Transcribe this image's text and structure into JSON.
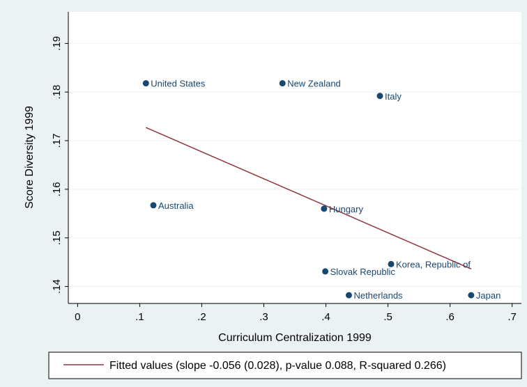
{
  "chart_data": {
    "type": "scatter",
    "xlabel": "Curriculum Centralization 1999",
    "ylabel": "Score Diversity 1999",
    "xlim": [
      -0.015,
      0.715
    ],
    "ylim": [
      0.1365,
      0.1965
    ],
    "x_ticks": [
      "0",
      ".1",
      ".2",
      ".3",
      ".4",
      ".5",
      ".6",
      ".7"
    ],
    "x_tick_values": [
      0,
      0.1,
      0.2,
      0.3,
      0.4,
      0.5,
      0.6,
      0.7
    ],
    "y_ticks": [
      ".14",
      ".15",
      ".16",
      ".17",
      ".18",
      ".19"
    ],
    "y_tick_values": [
      0.14,
      0.15,
      0.16,
      0.17,
      0.18,
      0.19
    ],
    "grid": "horizontal",
    "legend_position": "bottom",
    "points": [
      {
        "label": "United States",
        "x": 0.11,
        "y": 0.1818
      },
      {
        "label": "New Zealand",
        "x": 0.33,
        "y": 0.1818
      },
      {
        "label": "Italy",
        "x": 0.487,
        "y": 0.1792
      },
      {
        "label": "Australia",
        "x": 0.122,
        "y": 0.1567
      },
      {
        "label": "Hungary",
        "x": 0.397,
        "y": 0.156
      },
      {
        "label": "Korea, Republic of",
        "x": 0.505,
        "y": 0.1446
      },
      {
        "label": "Slovak Republic",
        "x": 0.399,
        "y": 0.1431
      },
      {
        "label": "Netherlands",
        "x": 0.437,
        "y": 0.1382
      },
      {
        "label": "Japan",
        "x": 0.634,
        "y": 0.1382
      }
    ],
    "fit_line": {
      "name": "Fitted values (slope -0.056 (0.028), p-value 0.088, R-squared 0.266)",
      "x": [
        0.11,
        0.634
      ],
      "y": [
        0.1727,
        0.1436
      ]
    },
    "colors": {
      "marker": "#1a476f",
      "fit_line": "#90353b",
      "grid": "#eaf2f3",
      "plot_background": "#ffffff",
      "outer_background": "#eaf2f3"
    }
  }
}
